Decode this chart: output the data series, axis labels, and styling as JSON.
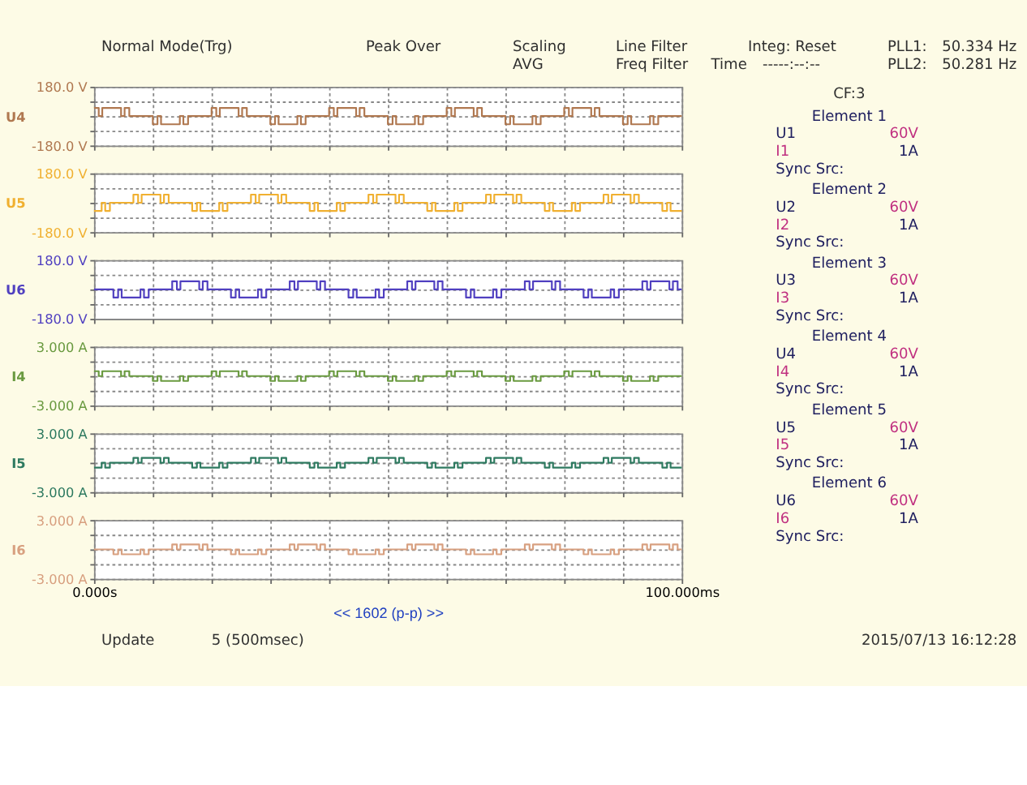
{
  "chart_data": [
    {
      "type": "step",
      "xlim": [
        0,
        100
      ],
      "xticks": [
        {
          "value": 0,
          "label": null
        },
        {
          "value": 10,
          "label": null
        },
        {
          "value": 20,
          "label": null
        },
        {
          "value": 30,
          "label": null
        },
        {
          "value": 40,
          "label": null
        },
        {
          "value": 50,
          "label": null
        },
        {
          "value": 60,
          "label": null
        },
        {
          "value": 70,
          "label": null
        },
        {
          "value": 80,
          "label": null
        },
        {
          "value": 90,
          "label": null
        },
        {
          "value": 100,
          "label": null
        }
      ],
      "ylim": [
        -180,
        180
      ],
      "yticks": [
        {
          "value": -180,
          "label": "-180.0 V"
        },
        {
          "value": -90,
          "label": null
        },
        {
          "value": 0,
          "label": null
        },
        {
          "value": 90,
          "label": null
        },
        {
          "value": 180,
          "label": "180.0 V"
        }
      ],
      "grid": true,
      "tick_labels": "y",
      "series": [
        {
          "name": "U4",
          "color": "#b07850",
          "x": [
            0,
            0.8,
            1.4,
            4.6,
            5.2,
            6,
            10,
            10.8,
            11.4,
            14.6,
            15.2,
            16,
            20,
            20.8,
            21.4,
            24.6,
            25.2,
            26,
            30,
            30.8,
            31.4,
            34.6,
            35.2,
            36,
            40,
            40.8,
            41.4,
            44.6,
            45.2,
            46,
            50,
            50.8,
            51.4,
            54.6,
            55.2,
            56,
            60,
            60.8,
            61.4,
            64.6,
            65.2,
            66,
            70,
            70.8,
            71.4,
            74.6,
            75.2,
            76,
            80,
            80.8,
            81.4,
            84.6,
            85.2,
            86,
            90,
            90.8,
            91.4,
            94.6,
            95.2,
            96,
            100
          ],
          "values": [
            50,
            0,
            50,
            0,
            50,
            0,
            -50,
            0,
            -50,
            0,
            -50,
            0,
            50,
            0,
            50,
            0,
            50,
            0,
            -50,
            0,
            -50,
            0,
            -50,
            0,
            50,
            0,
            50,
            0,
            50,
            0,
            -50,
            0,
            -50,
            0,
            -50,
            0,
            50,
            0,
            50,
            0,
            50,
            0,
            -50,
            0,
            -50,
            0,
            -50,
            0,
            50,
            0,
            50,
            0,
            50,
            0,
            -50,
            0,
            -50,
            0,
            -50,
            0,
            0
          ]
        }
      ]
    },
    {
      "type": "step",
      "xlim": [
        0,
        100
      ],
      "xticks": [
        {
          "value": 0,
          "label": null
        },
        {
          "value": 10,
          "label": null
        },
        {
          "value": 20,
          "label": null
        },
        {
          "value": 30,
          "label": null
        },
        {
          "value": 40,
          "label": null
        },
        {
          "value": 50,
          "label": null
        },
        {
          "value": 60,
          "label": null
        },
        {
          "value": 70,
          "label": null
        },
        {
          "value": 80,
          "label": null
        },
        {
          "value": 90,
          "label": null
        },
        {
          "value": 100,
          "label": null
        }
      ],
      "ylim": [
        -180,
        180
      ],
      "yticks": [
        {
          "value": -180,
          "label": "-180.0 V"
        },
        {
          "value": -90,
          "label": null
        },
        {
          "value": 0,
          "label": null
        },
        {
          "value": 90,
          "label": null
        },
        {
          "value": 180,
          "label": "180.0 V"
        }
      ],
      "grid": true,
      "tick_labels": "y",
      "series": [
        {
          "name": "U5",
          "color": "#f0b030",
          "x": [
            0,
            1.3,
            1.9,
            2.7,
            6.7,
            7.5,
            8.1,
            11.3,
            11.9,
            12.7,
            16.7,
            17.5,
            18.1,
            21.3,
            21.9,
            22.7,
            26.7,
            27.5,
            28.1,
            31.3,
            31.9,
            32.7,
            36.7,
            37.5,
            38.1,
            41.3,
            41.9,
            42.7,
            46.7,
            47.5,
            48.1,
            51.3,
            51.9,
            52.7,
            56.7,
            57.5,
            58.1,
            61.3,
            61.9,
            62.7,
            66.7,
            67.5,
            68.1,
            71.3,
            71.9,
            72.7,
            76.7,
            77.5,
            78.1,
            81.3,
            81.9,
            82.7,
            86.7,
            87.5,
            88.1,
            91.3,
            91.9,
            92.7,
            96.7,
            97.5,
            98.1,
            100
          ],
          "values": [
            -50,
            0,
            -50,
            0,
            50,
            0,
            50,
            0,
            50,
            0,
            -50,
            0,
            -50,
            0,
            -50,
            0,
            50,
            0,
            50,
            0,
            50,
            0,
            -50,
            0,
            -50,
            0,
            -50,
            0,
            50,
            0,
            50,
            0,
            50,
            0,
            -50,
            0,
            -50,
            0,
            -50,
            0,
            50,
            0,
            50,
            0,
            50,
            0,
            -50,
            0,
            -50,
            0,
            -50,
            0,
            50,
            0,
            50,
            0,
            50,
            0,
            -50,
            0,
            -50,
            -50
          ]
        }
      ]
    },
    {
      "type": "step",
      "xlim": [
        0,
        100
      ],
      "xticks": [
        {
          "value": 0,
          "label": null
        },
        {
          "value": 10,
          "label": null
        },
        {
          "value": 20,
          "label": null
        },
        {
          "value": 30,
          "label": null
        },
        {
          "value": 40,
          "label": null
        },
        {
          "value": 50,
          "label": null
        },
        {
          "value": 60,
          "label": null
        },
        {
          "value": 70,
          "label": null
        },
        {
          "value": 80,
          "label": null
        },
        {
          "value": 90,
          "label": null
        },
        {
          "value": 100,
          "label": null
        }
      ],
      "ylim": [
        -180,
        180
      ],
      "yticks": [
        {
          "value": -180,
          "label": "-180.0 V"
        },
        {
          "value": -90,
          "label": null
        },
        {
          "value": 0,
          "label": null
        },
        {
          "value": 90,
          "label": null
        },
        {
          "value": 180,
          "label": "180.0 V"
        }
      ],
      "grid": true,
      "tick_labels": "y",
      "series": [
        {
          "name": "U6",
          "color": "#5040c0",
          "x": [
            0,
            3.3,
            4.1,
            4.7,
            7.9,
            8.5,
            9.3,
            13.3,
            14.1,
            14.7,
            17.9,
            18.5,
            19.3,
            23.3,
            24.1,
            24.7,
            27.9,
            28.5,
            29.3,
            33.3,
            34.1,
            34.7,
            37.9,
            38.5,
            39.3,
            43.3,
            44.1,
            44.7,
            47.9,
            48.5,
            49.3,
            53.3,
            54.1,
            54.7,
            57.9,
            58.5,
            59.3,
            63.3,
            64.1,
            64.7,
            67.9,
            68.5,
            69.3,
            73.3,
            74.1,
            74.7,
            77.9,
            78.5,
            79.3,
            83.3,
            84.1,
            84.7,
            87.9,
            88.5,
            89.3,
            93.3,
            94.1,
            94.7,
            97.9,
            98.5,
            99.3,
            100
          ],
          "values": [
            0,
            -50,
            0,
            -50,
            0,
            -50,
            0,
            50,
            0,
            50,
            0,
            50,
            0,
            -50,
            0,
            -50,
            0,
            -50,
            0,
            50,
            0,
            50,
            0,
            50,
            0,
            -50,
            0,
            -50,
            0,
            -50,
            0,
            50,
            0,
            50,
            0,
            50,
            0,
            -50,
            0,
            -50,
            0,
            -50,
            0,
            50,
            0,
            50,
            0,
            50,
            0,
            -50,
            0,
            -50,
            0,
            -50,
            0,
            50,
            0,
            50,
            0,
            50,
            0,
            0
          ]
        }
      ]
    },
    {
      "type": "step",
      "xlim": [
        0,
        100
      ],
      "xticks": [
        {
          "value": 0,
          "label": null
        },
        {
          "value": 10,
          "label": null
        },
        {
          "value": 20,
          "label": null
        },
        {
          "value": 30,
          "label": null
        },
        {
          "value": 40,
          "label": null
        },
        {
          "value": 50,
          "label": null
        },
        {
          "value": 60,
          "label": null
        },
        {
          "value": 70,
          "label": null
        },
        {
          "value": 80,
          "label": null
        },
        {
          "value": 90,
          "label": null
        },
        {
          "value": 100,
          "label": null
        }
      ],
      "ylim": [
        -3,
        3
      ],
      "yticks": [
        {
          "value": -3,
          "label": "-3.000 A"
        },
        {
          "value": -1.5,
          "label": null
        },
        {
          "value": 0,
          "label": null
        },
        {
          "value": 1.5,
          "label": null
        },
        {
          "value": 3,
          "label": "3.000 A"
        }
      ],
      "grid": true,
      "tick_labels": "y",
      "series": [
        {
          "name": "I4",
          "color": "#6a9a40",
          "x": [
            0,
            0.8,
            1.4,
            4.6,
            5.2,
            6,
            10,
            10.8,
            11.4,
            14.6,
            15.2,
            16,
            20,
            20.8,
            21.4,
            24.6,
            25.2,
            26,
            30,
            30.8,
            31.4,
            34.6,
            35.2,
            36,
            40,
            40.8,
            41.4,
            44.6,
            45.2,
            46,
            50,
            50.8,
            51.4,
            54.6,
            55.2,
            56,
            60,
            60.8,
            61.4,
            64.6,
            65.2,
            66,
            70,
            70.8,
            71.4,
            74.6,
            75.2,
            76,
            80,
            80.8,
            81.4,
            84.6,
            85.2,
            86,
            90,
            90.8,
            91.4,
            94.6,
            95.2,
            96,
            100
          ],
          "values": [
            0.5,
            0,
            0.5,
            0,
            0.5,
            0,
            -0.5,
            0,
            -0.5,
            0,
            -0.5,
            0,
            0.5,
            0,
            0.5,
            0,
            0.5,
            0,
            -0.5,
            0,
            -0.5,
            0,
            -0.5,
            0,
            0.5,
            0,
            0.5,
            0,
            0.5,
            0,
            -0.5,
            0,
            -0.5,
            0,
            -0.5,
            0,
            0.5,
            0,
            0.5,
            0,
            0.5,
            0,
            -0.5,
            0,
            -0.5,
            0,
            -0.5,
            0,
            0.5,
            0,
            0.5,
            0,
            0.5,
            0,
            -0.5,
            0,
            -0.5,
            0,
            -0.5,
            0,
            0
          ]
        }
      ]
    },
    {
      "type": "step",
      "xlim": [
        0,
        100
      ],
      "xticks": [
        {
          "value": 0,
          "label": null
        },
        {
          "value": 10,
          "label": null
        },
        {
          "value": 20,
          "label": null
        },
        {
          "value": 30,
          "label": null
        },
        {
          "value": 40,
          "label": null
        },
        {
          "value": 50,
          "label": null
        },
        {
          "value": 60,
          "label": null
        },
        {
          "value": 70,
          "label": null
        },
        {
          "value": 80,
          "label": null
        },
        {
          "value": 90,
          "label": null
        },
        {
          "value": 100,
          "label": null
        }
      ],
      "ylim": [
        -3,
        3
      ],
      "yticks": [
        {
          "value": -3,
          "label": "-3.000 A"
        },
        {
          "value": -1.5,
          "label": null
        },
        {
          "value": 0,
          "label": null
        },
        {
          "value": 1.5,
          "label": null
        },
        {
          "value": 3,
          "label": "3.000 A"
        }
      ],
      "grid": true,
      "tick_labels": "y",
      "series": [
        {
          "name": "I5",
          "color": "#2e7a60",
          "x": [
            0,
            1.3,
            1.9,
            2.7,
            6.7,
            7.5,
            8.1,
            11.3,
            11.9,
            12.7,
            16.7,
            17.5,
            18.1,
            21.3,
            21.9,
            22.7,
            26.7,
            27.5,
            28.1,
            31.3,
            31.9,
            32.7,
            36.7,
            37.5,
            38.1,
            41.3,
            41.9,
            42.7,
            46.7,
            47.5,
            48.1,
            51.3,
            51.9,
            52.7,
            56.7,
            57.5,
            58.1,
            61.3,
            61.9,
            62.7,
            66.7,
            67.5,
            68.1,
            71.3,
            71.9,
            72.7,
            76.7,
            77.5,
            78.1,
            81.3,
            81.9,
            82.7,
            86.7,
            87.5,
            88.1,
            91.3,
            91.9,
            92.7,
            96.7,
            97.5,
            98.1,
            100
          ],
          "values": [
            -0.5,
            0,
            -0.5,
            0,
            0.5,
            0,
            0.5,
            0,
            0.5,
            0,
            -0.5,
            0,
            -0.5,
            0,
            -0.5,
            0,
            0.5,
            0,
            0.5,
            0,
            0.5,
            0,
            -0.5,
            0,
            -0.5,
            0,
            -0.5,
            0,
            0.5,
            0,
            0.5,
            0,
            0.5,
            0,
            -0.5,
            0,
            -0.5,
            0,
            -0.5,
            0,
            0.5,
            0,
            0.5,
            0,
            0.5,
            0,
            -0.5,
            0,
            -0.5,
            0,
            -0.5,
            0,
            0.5,
            0,
            0.5,
            0,
            0.5,
            0,
            -0.5,
            0,
            -0.5,
            -0.5
          ]
        }
      ]
    },
    {
      "type": "step",
      "xlabel": "<< 1602 (p-p) >>",
      "xlim": [
        0,
        100
      ],
      "xticks": [
        {
          "value": 0,
          "label": "0.000s"
        },
        {
          "value": 10,
          "label": null
        },
        {
          "value": 20,
          "label": null
        },
        {
          "value": 30,
          "label": null
        },
        {
          "value": 40,
          "label": null
        },
        {
          "value": 50,
          "label": null
        },
        {
          "value": 60,
          "label": null
        },
        {
          "value": 70,
          "label": null
        },
        {
          "value": 80,
          "label": null
        },
        {
          "value": 90,
          "label": null
        },
        {
          "value": 100,
          "label": "100.000ms"
        }
      ],
      "ylim": [
        -3,
        3
      ],
      "yticks": [
        {
          "value": -3,
          "label": "-3.000 A"
        },
        {
          "value": -1.5,
          "label": null
        },
        {
          "value": 0,
          "label": null
        },
        {
          "value": 1.5,
          "label": null
        },
        {
          "value": 3,
          "label": "3.000 A"
        }
      ],
      "grid": true,
      "series": [
        {
          "name": "I6",
          "color": "#d8a080",
          "x": [
            0,
            3.3,
            4.1,
            4.7,
            7.9,
            8.5,
            9.3,
            13.3,
            14.1,
            14.7,
            17.9,
            18.5,
            19.3,
            23.3,
            24.1,
            24.7,
            27.9,
            28.5,
            29.3,
            33.3,
            34.1,
            34.7,
            37.9,
            38.5,
            39.3,
            43.3,
            44.1,
            44.7,
            47.9,
            48.5,
            49.3,
            53.3,
            54.1,
            54.7,
            57.9,
            58.5,
            59.3,
            63.3,
            64.1,
            64.7,
            67.9,
            68.5,
            69.3,
            73.3,
            74.1,
            74.7,
            77.9,
            78.5,
            79.3,
            83.3,
            84.1,
            84.7,
            87.9,
            88.5,
            89.3,
            93.3,
            94.1,
            94.7,
            97.9,
            98.5,
            99.3,
            100
          ],
          "values": [
            0,
            -0.5,
            0,
            -0.5,
            0,
            -0.5,
            0,
            0.5,
            0,
            0.5,
            0,
            0.5,
            0,
            -0.5,
            0,
            -0.5,
            0,
            -0.5,
            0,
            0.5,
            0,
            0.5,
            0,
            0.5,
            0,
            -0.5,
            0,
            -0.5,
            0,
            -0.5,
            0,
            0.5,
            0,
            0.5,
            0,
            0.5,
            0,
            -0.5,
            0,
            -0.5,
            0,
            -0.5,
            0,
            0.5,
            0,
            0.5,
            0,
            0.5,
            0,
            -0.5,
            0,
            -0.5,
            0,
            -0.5,
            0,
            0.5,
            0,
            0.5,
            0,
            0.5,
            0,
            0
          ]
        }
      ]
    },
    {
      "type": "other",
      "annotations": [
        "Normal Mode(Trg)",
        "Peak Over",
        "Scaling",
        "AVG",
        "Line Filter",
        "Freq Filter",
        "Integ: Reset",
        "Time",
        "-----:--:--",
        "PLL1:",
        "50.334 Hz",
        "PLL2:",
        "50.281 Hz",
        "CF:3",
        "Element 1",
        "U1",
        "60V",
        "I1",
        "1A",
        "Sync Src:",
        "Element 2",
        "U2",
        "60V",
        "I2",
        "1A",
        "Sync Src:",
        "Element 3",
        "U3",
        "60V",
        "I3",
        "1A",
        "Sync Src:",
        "Element 4",
        "U4",
        "60V",
        "I4",
        "1A",
        "Sync Src:",
        "Element 5",
        "U5",
        "60V",
        "I5",
        "1A",
        "Sync Src:",
        "Element 6",
        "U6",
        "60V",
        "I6",
        "1A",
        "Sync Src:",
        "Update",
        "5 (500msec)",
        "2015/07/13 16:12:28"
      ]
    }
  ]
}
